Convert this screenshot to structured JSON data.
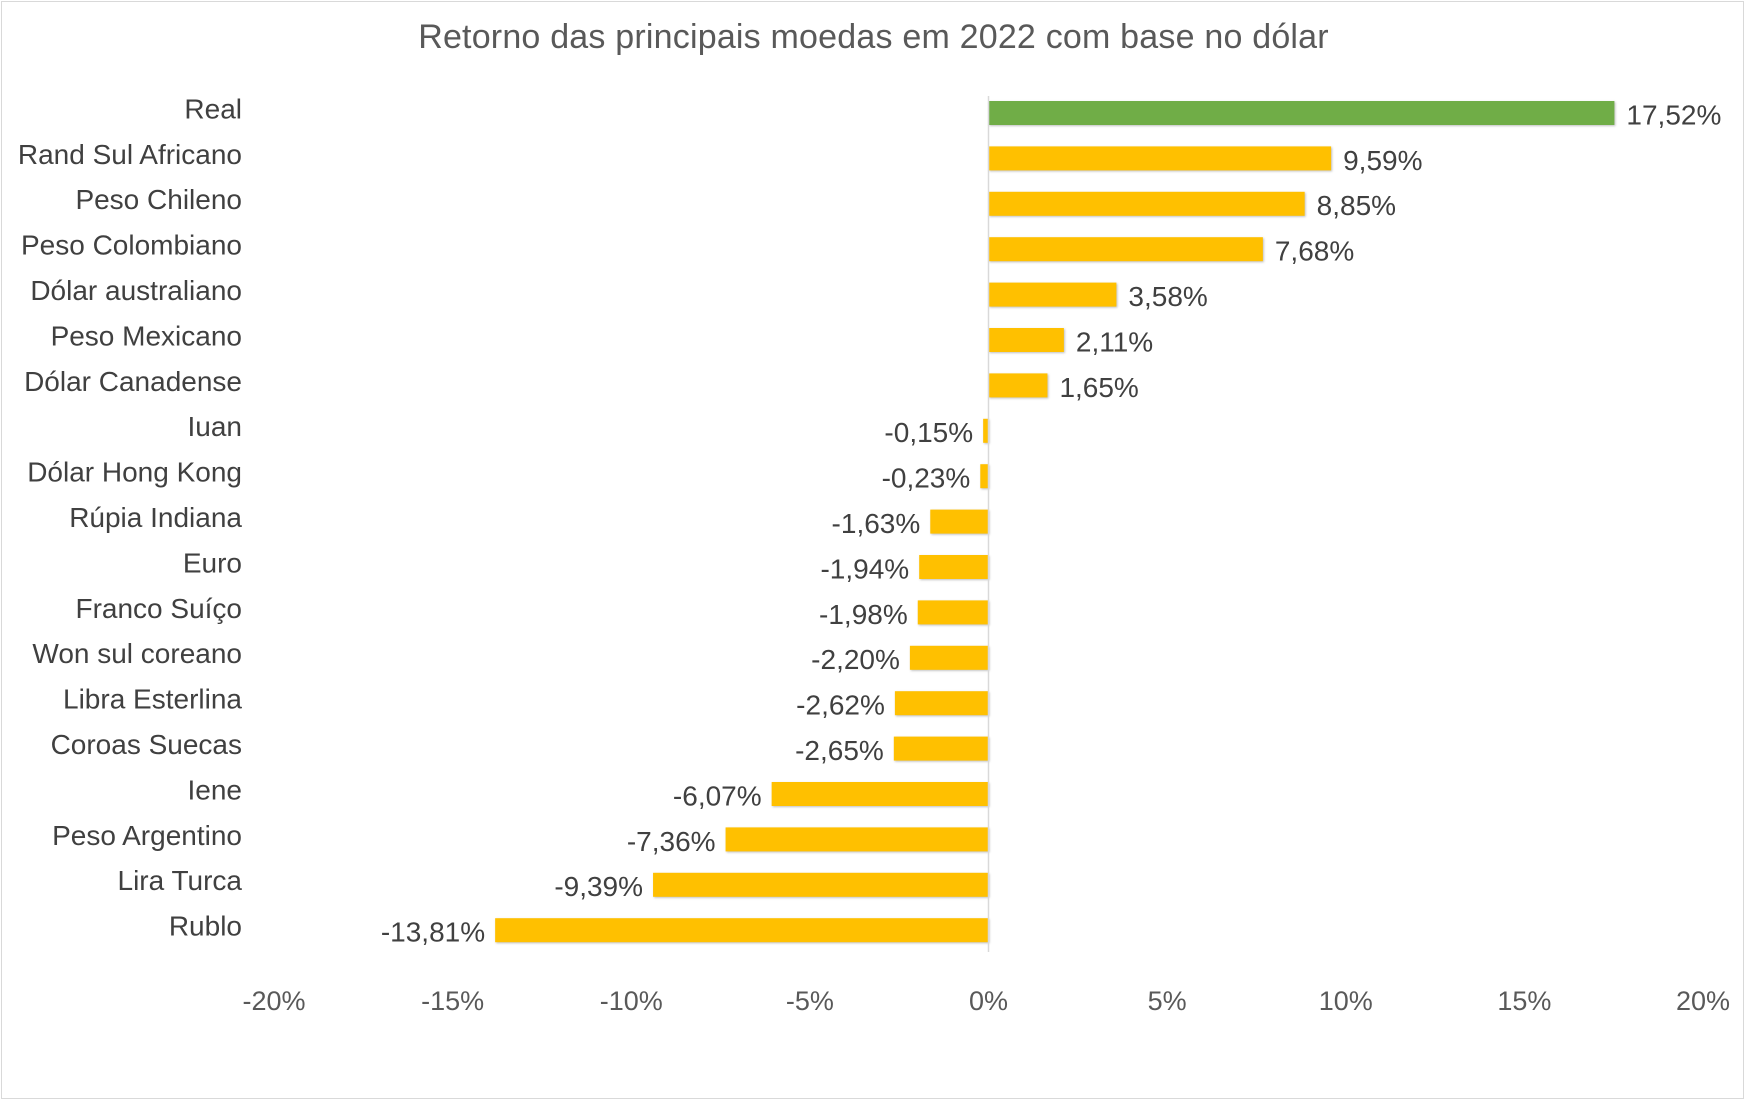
{
  "chart_data": {
    "type": "bar",
    "orientation": "horizontal",
    "title": "Retorno das principais moedas em 2022 com base no dólar",
    "categories": [
      "Real",
      "Rand Sul Africano",
      "Peso Chileno",
      "Peso Colombiano",
      "Dólar australiano",
      "Peso Mexicano",
      "Dólar Canadense",
      "Iuan",
      "Dólar Hong Kong",
      "Rúpia Indiana",
      "Euro",
      "Franco Suíço",
      "Won sul coreano",
      "Libra Esterlina",
      "Coroas Suecas",
      "Iene",
      "Peso Argentino",
      "Lira Turca",
      "Rublo"
    ],
    "values": [
      17.52,
      9.59,
      8.85,
      7.68,
      3.58,
      2.11,
      1.65,
      -0.15,
      -0.23,
      -1.63,
      -1.94,
      -1.98,
      -2.2,
      -2.62,
      -2.65,
      -6.07,
      -7.36,
      -9.39,
      -13.81
    ],
    "data_labels": [
      "17,52%",
      "9,59%",
      "8,85%",
      "7,68%",
      "3,58%",
      "2,11%",
      "1,65%",
      "-0,15%",
      "-0,23%",
      "-1,63%",
      "-1,94%",
      "-1,98%",
      "-2,20%",
      "-2,62%",
      "-2,65%",
      "-6,07%",
      "-7,36%",
      "-9,39%",
      "-13,81%"
    ],
    "xlim": [
      -20,
      20
    ],
    "x_ticks": [
      -20,
      -15,
      -10,
      -5,
      0,
      5,
      10,
      15,
      20
    ],
    "x_tick_labels": [
      "-20%",
      "-15%",
      "-10%",
      "-5%",
      "0%",
      "5%",
      "10%",
      "15%",
      "20%"
    ],
    "xlabel": "",
    "ylabel": "",
    "grid": false,
    "legend": "none",
    "colors": {
      "highlight": "#70ad47",
      "default": "#ffc000",
      "axis": "#d9d9d9",
      "text": "#404040"
    },
    "highlight_category": "Real"
  }
}
